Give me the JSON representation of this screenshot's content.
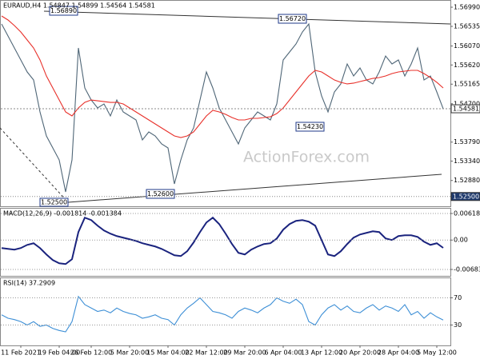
{
  "chart_data": [
    {
      "type": "line",
      "title": "EURAUD,H4  1.54847 1.54899 1.54564 1.54581",
      "watermark": "ActionForex.com",
      "annotations": [
        "1.56890",
        "1.56720",
        "1.54230",
        "1.52600",
        "1.52500"
      ],
      "ylim": [
        1.52268,
        1.57161
      ],
      "yticks": [
        {
          "value": 1.5699,
          "label": "1.56990"
        },
        1.56535,
        {
          "value": 1.5607,
          "label": "1.56070"
        },
        {
          "value": 1.5562,
          "label": "1.55620"
        },
        1.55165,
        {
          "value": 1.547,
          "label": "1.54700"
        },
        {
          "value": 1.5379,
          "label": "1.53790"
        },
        {
          "value": 1.5334,
          "label": "1.53340"
        },
        {
          "value": 1.5288,
          "label": "1.52880"
        }
      ],
      "price_markers": [
        1.54581,
        {
          "value": 1.525,
          "label": "1.52500"
        }
      ],
      "grid": false,
      "series": [
        {
          "color": "#4f6677",
          "values": [
            1.56592,
            1.56308,
            1.56023,
            1.55739,
            1.55454,
            1.55264,
            1.54506,
            1.53937,
            1.53652,
            1.53368,
            1.52609,
            1.53368,
            1.56023,
            1.55075,
            1.5479,
            1.54601,
            1.54696,
            1.54411,
            1.5479,
            1.54506,
            1.54411,
            1.54316,
            1.53842,
            1.54032,
            1.53937,
            1.53747,
            1.53652,
            1.52799,
            1.53368,
            1.53842,
            1.54127,
            1.5479,
            1.55454,
            1.55075,
            1.54601,
            1.54316,
            1.54032,
            1.53747,
            1.54127,
            1.54316,
            1.54506,
            1.54411,
            1.54316,
            1.54696,
            1.55739,
            1.55928,
            1.56118,
            1.56402,
            1.56592,
            1.55454,
            1.54885,
            1.54506,
            1.5498,
            1.5517,
            1.55644,
            1.55359,
            1.55549,
            1.55264,
            1.5517,
            1.55454,
            1.55833,
            1.55644,
            1.55739,
            1.55359,
            1.55644,
            1.56023,
            1.55264,
            1.55359,
            1.5498,
            1.54581
          ]
        },
        {
          "color": "#e8302a",
          "values": [
            1.56782,
            1.56687,
            1.56554,
            1.56402,
            1.56213,
            1.56023,
            1.55739,
            1.55359,
            1.55075,
            1.5479,
            1.54506,
            1.54411,
            1.54601,
            1.54733,
            1.5479,
            1.54771,
            1.54752,
            1.54733,
            1.54733,
            1.54696,
            1.54601,
            1.54506,
            1.54411,
            1.54316,
            1.54221,
            1.54127,
            1.54032,
            1.53937,
            1.53899,
            1.53937,
            1.54032,
            1.54221,
            1.54411,
            1.54544,
            1.54506,
            1.54449,
            1.54373,
            1.54316,
            1.54316,
            1.54354,
            1.54354,
            1.54373,
            1.54392,
            1.54468,
            1.54601,
            1.5479,
            1.5498,
            1.5517,
            1.55359,
            1.55492,
            1.55454,
            1.55359,
            1.55264,
            1.55208,
            1.5517,
            1.55189,
            1.55227,
            1.55264,
            1.55302,
            1.55321,
            1.55359,
            1.55416,
            1.55454,
            1.55473,
            1.55492,
            1.55492,
            1.55416,
            1.55321,
            1.55208,
            1.55075
          ]
        }
      ]
    },
    {
      "type": "line",
      "title": "MACD(12,26,9) -0.001814 -0.001384",
      "ylim": [
        -0.008325,
        0.007486
      ],
      "yticks": [
        0.006184,
        {
          "value": 0,
          "label": "0.00"
        },
        -0.006837
      ],
      "grid": true,
      "series": [
        {
          "color": "#1a237e",
          "values": [
            -0.00186,
            -0.00205,
            -0.00223,
            -0.00186,
            -0.00112,
            -0.00074,
            -0.00186,
            -0.00335,
            -0.00465,
            -0.00539,
            -0.00558,
            -0.00446,
            0.00186,
            0.00521,
            0.00465,
            0.00335,
            0.00223,
            0.00149,
            0.00093,
            0.00056,
            0.00019,
            -0.00019,
            -0.00074,
            -0.00112,
            -0.00149,
            -0.00205,
            -0.00279,
            -0.00353,
            -0.00372,
            -0.0026,
            -0.00056,
            0.00186,
            0.00409,
            0.00521,
            0.00372,
            0.00149,
            -0.00093,
            -0.00298,
            -0.00335,
            -0.00223,
            -0.00149,
            -0.00093,
            -0.00074,
            0.00037,
            0.00242,
            0.00372,
            0.00446,
            0.00465,
            0.00428,
            0.00335,
            0,
            -0.00335,
            -0.00372,
            -0.0026,
            -0.00093,
            0.00056,
            0.0013,
            0.00167,
            0.00205,
            0.00186,
            0.00037,
            0,
            0.00093,
            0.00112,
            0.00112,
            0.00074,
            -0.00037,
            -0.00112,
            -0.00074,
            -0.001814
          ]
        }
      ]
    },
    {
      "type": "line",
      "title": "RSI(14) 37.2909",
      "ylim": [
        0,
        100
      ],
      "yticks": [
        70,
        30
      ],
      "grid": true,
      "categories": [
        null,
        null,
        null,
        "11 Feb 2021",
        null,
        null,
        null,
        null,
        null,
        "19 Feb 04:00",
        null,
        null,
        null,
        null,
        "26 Feb 12:00",
        null,
        null,
        null,
        null,
        null,
        "5 Mar 20:00",
        null,
        null,
        null,
        null,
        null,
        "15 Mar 04:00",
        null,
        null,
        null,
        null,
        null,
        "22 Mar 12:00",
        null,
        null,
        null,
        null,
        null,
        "29 Mar 20:00",
        null,
        null,
        null,
        null,
        null,
        "6 Apr 04:00",
        null,
        null,
        null,
        null,
        null,
        "13 Apr 12:00",
        null,
        null,
        null,
        null,
        null,
        "20 Apr 20:00",
        null,
        null,
        null,
        null,
        null,
        "28 Apr 04:00",
        null,
        null,
        null,
        null,
        null,
        "5 May 12:00",
        null
      ],
      "series": [
        {
          "color": "#3d8fd6",
          "values": [
            45,
            40,
            38,
            35,
            30,
            35,
            28,
            30,
            25,
            22,
            20,
            35,
            72,
            60,
            55,
            50,
            52,
            48,
            55,
            50,
            47,
            45,
            40,
            42,
            45,
            40,
            38,
            30,
            45,
            55,
            62,
            70,
            60,
            50,
            48,
            45,
            40,
            50,
            55,
            52,
            48,
            55,
            60,
            70,
            65,
            62,
            68,
            60,
            35,
            30,
            45,
            55,
            60,
            52,
            58,
            50,
            48,
            55,
            60,
            52,
            58,
            55,
            50,
            60,
            45,
            50,
            40,
            48,
            42,
            37.2909
          ]
        }
      ]
    }
  ]
}
